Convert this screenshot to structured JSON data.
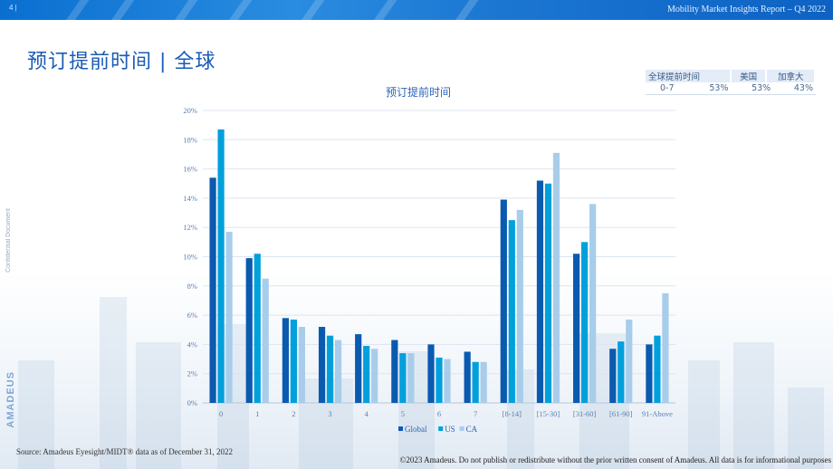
{
  "header": {
    "page_number": "4 |",
    "report_title": "Mobility Market Insights Report – Q4 2022"
  },
  "page_title": "预订提前时间 | 全球",
  "side": {
    "confidential": "Confidential Document",
    "brand": "AMADEUS"
  },
  "summary_table": {
    "headers": [
      "全球提前时间",
      "美国",
      "加拿大"
    ],
    "row": {
      "range": "0-7",
      "global": "53%",
      "us": "53%",
      "ca": "43%"
    }
  },
  "chart_data": {
    "type": "bar",
    "title": "预订提前时间",
    "xlabel": "",
    "ylabel": "",
    "ylim": [
      0,
      20
    ],
    "yticks": [
      "0%",
      "2%",
      "4%",
      "6%",
      "8%",
      "10%",
      "12%",
      "14%",
      "16%",
      "18%",
      "20%"
    ],
    "categories": [
      "0",
      "1",
      "2",
      "3",
      "4",
      "5",
      "6",
      "7",
      "[8-14]",
      "[15-30]",
      "[31-60]",
      "[61-90]",
      "91-Above"
    ],
    "series": [
      {
        "name": "Global",
        "color": "#0a5ab0",
        "values": [
          15.4,
          9.9,
          5.8,
          5.2,
          4.7,
          4.3,
          4.0,
          3.5,
          13.9,
          15.2,
          10.2,
          3.7,
          4.0
        ]
      },
      {
        "name": "US",
        "color": "#00a0dc",
        "values": [
          18.7,
          10.2,
          5.7,
          4.6,
          3.9,
          3.4,
          3.1,
          2.8,
          12.5,
          15.0,
          11.0,
          4.2,
          4.6
        ]
      },
      {
        "name": "CA",
        "color": "#a8cdea",
        "values": [
          11.7,
          8.5,
          5.2,
          4.3,
          3.7,
          3.4,
          3.0,
          2.8,
          13.2,
          17.1,
          13.6,
          5.7,
          7.5
        ]
      }
    ],
    "legend_position": "bottom"
  },
  "footer": {
    "source": "Source: Amadeus Eyesight/MIDT® data as of December 31, 2022",
    "copyright": "©2023 Amadeus. Do not publish or redistribute without the prior written consent of Amadeus. All data is for informational purposes"
  }
}
